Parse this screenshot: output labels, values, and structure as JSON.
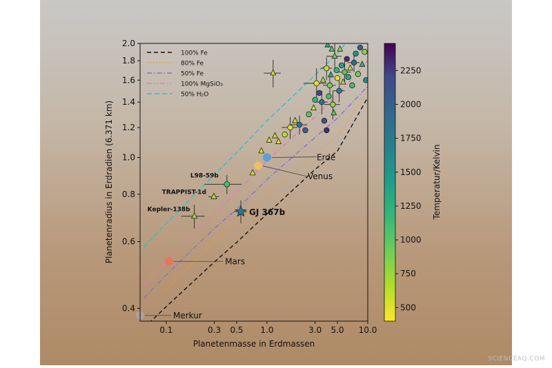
{
  "watermark": "SCIENCEAQ.COM",
  "colors": {
    "bg_top": "#c9c8c6",
    "bg_bottom": "#ae8a66",
    "side_white": "#ffffff"
  },
  "chart_data": {
    "type": "scatter",
    "title": "",
    "xlabel": "Planetenmasse in Erdmassen",
    "ylabel": "Planetenradius in Erdradien (6.371 km)",
    "x_scale": "log",
    "y_scale": "log",
    "xlim": [
      0.055,
      10.0
    ],
    "ylim": [
      0.37,
      2.0
    ],
    "x_ticks": [
      {
        "value": 0.1,
        "label": "0.1"
      },
      {
        "value": 0.3,
        "label": "0.3"
      },
      {
        "value": 0.5,
        "label": "0.5"
      },
      {
        "value": 1.0,
        "label": "1.0"
      },
      {
        "value": 3.0,
        "label": "3.0"
      },
      {
        "value": 5.0,
        "label": "5.0"
      },
      {
        "value": 10.0,
        "label": "10.0"
      }
    ],
    "y_ticks": [
      {
        "value": 0.4,
        "label": "0.4"
      },
      {
        "value": 0.6,
        "label": "0.6"
      },
      {
        "value": 0.8,
        "label": "0.8"
      },
      {
        "value": 1.0,
        "label": "1.0"
      },
      {
        "value": 1.2,
        "label": "1.2"
      },
      {
        "value": 1.4,
        "label": "1.4"
      },
      {
        "value": 1.6,
        "label": "1.6"
      },
      {
        "value": 1.8,
        "label": "1.8"
      },
      {
        "value": 2.0,
        "label": "2.0"
      }
    ],
    "grid": false,
    "legend_position": "top-left",
    "legend": [
      {
        "label": "100% Fe",
        "color": "#111111",
        "dash": "6,4"
      },
      {
        "label": "80% Fe",
        "color": "#f29a2e",
        "dash": "1.5,3"
      },
      {
        "label": "50% Fe",
        "color": "#8b6fd0",
        "dash": "7,3,1.5,3"
      },
      {
        "label": "100% MgSiO₃",
        "color": "#e57ab8",
        "dash": "7,3,1.5,3,1.5,3"
      },
      {
        "label": "50% H₂O",
        "color": "#29c2cc",
        "dash": "7,4"
      }
    ],
    "composition_curves": [
      {
        "name": "100% Fe",
        "color": "#111111",
        "dash": "6,4",
        "points": [
          [
            0.06,
            0.355
          ],
          [
            0.1,
            0.404
          ],
          [
            0.3,
            0.53
          ],
          [
            0.5,
            0.597
          ],
          [
            1.0,
            0.71
          ],
          [
            3.0,
            0.93
          ],
          [
            5.0,
            1.04
          ],
          [
            10.0,
            1.44
          ]
        ]
      },
      {
        "name": "80% Fe",
        "color": "#f29a2e",
        "dash": "1.5,3",
        "points": [
          [
            0.1,
            0.45
          ],
          [
            0.3,
            0.6
          ],
          [
            0.5,
            0.67
          ],
          [
            1.0,
            0.8
          ],
          [
            3.0,
            1.02
          ],
          [
            5.0,
            1.14
          ],
          [
            10.0,
            1.5
          ]
        ]
      },
      {
        "name": "50% Fe",
        "color": "#8b6fd0",
        "dash": "7,3,1.5,3",
        "points": [
          [
            0.06,
            0.425
          ],
          [
            0.1,
            0.49
          ],
          [
            0.3,
            0.65
          ],
          [
            0.5,
            0.73
          ],
          [
            1.0,
            0.875
          ],
          [
            3.0,
            1.13
          ],
          [
            5.0,
            1.27
          ],
          [
            10.0,
            1.54
          ]
        ]
      },
      {
        "name": "100% MgSiO₃",
        "color": "#e57ab8",
        "dash": "7,3,1.5,3,1.5,3",
        "points": [
          [
            0.06,
            0.46
          ],
          [
            0.1,
            0.53
          ],
          [
            0.3,
            0.71
          ],
          [
            0.5,
            0.81
          ],
          [
            1.0,
            0.98
          ],
          [
            3.0,
            1.28
          ],
          [
            5.0,
            1.46
          ],
          [
            10.0,
            1.8
          ]
        ]
      },
      {
        "name": "50% H₂O",
        "color": "#29c2cc",
        "dash": "7,4",
        "points": [
          [
            0.06,
            0.58
          ],
          [
            0.1,
            0.67
          ],
          [
            0.3,
            0.9
          ],
          [
            0.5,
            1.03
          ],
          [
            1.0,
            1.25
          ],
          [
            3.0,
            1.65
          ],
          [
            5.0,
            1.88
          ],
          [
            6.0,
            2.0
          ]
        ]
      }
    ],
    "colorbar": {
      "label": "Temperatur/Kelvin",
      "min": 400,
      "max": 2450,
      "ticks": [
        500,
        750,
        1000,
        1250,
        1500,
        1750,
        2000,
        2250
      ]
    },
    "solar_system": [
      {
        "name": "Erde",
        "mass": 1.0,
        "radius": 1.0,
        "color": "#4b9be0"
      },
      {
        "name": "Venus",
        "mass": 0.815,
        "radius": 0.95,
        "color": "#f2c35a"
      },
      {
        "name": "Mars",
        "mass": 0.107,
        "radius": 0.532,
        "color": "#f06d55"
      },
      {
        "name": "Merkur",
        "mass": 0.055,
        "radius": 0.383,
        "color": "#a8a8a8"
      }
    ],
    "labeled_planets": [
      {
        "name": "GJ 367b",
        "mass": 0.55,
        "radius": 0.72,
        "temp": 1750,
        "marker": "star",
        "xerr": 0.08,
        "yerr": 0.05
      },
      {
        "name": "L98-59b",
        "mass": 0.4,
        "radius": 0.85,
        "temp": 1100,
        "marker": "circle",
        "xerr": 0.16,
        "yerr": 0.05
      },
      {
        "name": "TRAPPIST-1d",
        "mass": 0.297,
        "radius": 0.788,
        "temp": 650,
        "marker": "triangle",
        "xerr": 0.035,
        "yerr": 0.012
      },
      {
        "name": "Kepler-138b",
        "mass": 0.19,
        "radius": 0.7,
        "temp": 700,
        "marker": "triangle",
        "xerr": 0.05,
        "yerr": 0.05
      }
    ],
    "other_planets": [
      {
        "mass": 1.15,
        "radius": 1.67,
        "temp": 550,
        "marker": "triangle",
        "xerr": 0.22,
        "yerr": 0.14
      },
      {
        "mass": 0.72,
        "radius": 0.91,
        "temp": 500,
        "marker": "triangle"
      },
      {
        "mass": 0.88,
        "radius": 1.04,
        "temp": 550,
        "marker": "triangle"
      },
      {
        "mass": 1.05,
        "radius": 1.11,
        "temp": 520,
        "marker": "triangle"
      },
      {
        "mass": 1.2,
        "radius": 1.14,
        "temp": 600,
        "marker": "triangle"
      },
      {
        "mass": 1.3,
        "radius": 1.1,
        "temp": 500,
        "marker": "triangle"
      },
      {
        "mass": 1.5,
        "radius": 1.15,
        "temp": 650,
        "marker": "circle"
      },
      {
        "mass": 1.7,
        "radius": 1.2,
        "temp": 500,
        "marker": "circle",
        "xerr": 0.3,
        "yerr": 0.08
      },
      {
        "mass": 1.9,
        "radius": 1.25,
        "temp": 600,
        "marker": "triangle"
      },
      {
        "mass": 2.1,
        "radius": 1.22,
        "temp": 1800,
        "marker": "circle",
        "xerr": 0.4,
        "yerr": 0.07
      },
      {
        "mass": 2.4,
        "radius": 1.18,
        "temp": 2000,
        "marker": "circle"
      },
      {
        "mass": 2.6,
        "radius": 1.3,
        "temp": 1000,
        "marker": "circle"
      },
      {
        "mass": 2.9,
        "radius": 1.35,
        "temp": 550,
        "marker": "triangle"
      },
      {
        "mass": 3.0,
        "radius": 1.42,
        "temp": 1200,
        "marker": "circle"
      },
      {
        "mass": 3.1,
        "radius": 1.57,
        "temp": 500,
        "marker": "circle",
        "xerr": 0.8,
        "yerr": 0.15
      },
      {
        "mass": 3.3,
        "radius": 1.48,
        "temp": 2200,
        "marker": "circle"
      },
      {
        "mass": 3.5,
        "radius": 1.4,
        "temp": 1800,
        "marker": "circle",
        "xerr": 0.5,
        "yerr": 0.1
      },
      {
        "mass": 3.7,
        "radius": 1.25,
        "temp": 2100,
        "marker": "circle"
      },
      {
        "mass": 3.9,
        "radius": 1.18,
        "temp": 2300,
        "marker": "circle"
      },
      {
        "mass": 3.6,
        "radius": 1.6,
        "temp": 700,
        "marker": "triangle"
      },
      {
        "mass": 3.9,
        "radius": 1.72,
        "temp": 600,
        "marker": "circle",
        "xerr": 0.5,
        "yerr": 0.12
      },
      {
        "mass": 4.1,
        "radius": 1.45,
        "temp": 1100,
        "marker": "circle"
      },
      {
        "mass": 4.2,
        "radius": 1.55,
        "temp": 900,
        "marker": "circle",
        "xerr": 0.6,
        "yerr": 0.1
      },
      {
        "mass": 4.3,
        "radius": 1.65,
        "temp": 1300,
        "marker": "triangle"
      },
      {
        "mass": 4.5,
        "radius": 1.38,
        "temp": 800,
        "marker": "circle",
        "xerr": 0.8,
        "yerr": 0.12
      },
      {
        "mass": 4.6,
        "radius": 1.31,
        "temp": 1000,
        "marker": "triangle"
      },
      {
        "mass": 4.7,
        "radius": 1.85,
        "temp": 900,
        "marker": "triangle",
        "xerr": 0.8,
        "yerr": 0.15
      },
      {
        "mass": 4.9,
        "radius": 1.7,
        "temp": 1200,
        "marker": "circle"
      },
      {
        "mass": 5.0,
        "radius": 1.62,
        "temp": 500,
        "marker": "circle"
      },
      {
        "mass": 5.2,
        "radius": 1.5,
        "temp": 1700,
        "marker": "circle",
        "xerr": 0.7,
        "yerr": 0.1
      },
      {
        "mass": 5.3,
        "radius": 1.93,
        "temp": 800,
        "marker": "triangle"
      },
      {
        "mass": 5.5,
        "radius": 1.75,
        "temp": 1400,
        "marker": "circle"
      },
      {
        "mass": 5.7,
        "radius": 1.58,
        "temp": 700,
        "marker": "triangle"
      },
      {
        "mass": 5.9,
        "radius": 1.68,
        "temp": 1000,
        "marker": "circle",
        "xerr": 0.9,
        "yerr": 0.12
      },
      {
        "mass": 6.2,
        "radius": 1.82,
        "temp": 2300,
        "marker": "circle"
      },
      {
        "mass": 6.4,
        "radius": 1.63,
        "temp": 1300,
        "marker": "circle"
      },
      {
        "mass": 6.7,
        "radius": 1.72,
        "temp": 600,
        "marker": "triangle"
      },
      {
        "mass": 7.0,
        "radius": 1.55,
        "temp": 1100,
        "marker": "circle"
      },
      {
        "mass": 7.3,
        "radius": 1.78,
        "temp": 1900,
        "marker": "circle",
        "xerr": 1.0,
        "yerr": 0.1
      },
      {
        "mass": 7.6,
        "radius": 1.88,
        "temp": 1500,
        "marker": "circle"
      },
      {
        "mass": 8.0,
        "radius": 1.66,
        "temp": 900,
        "marker": "circle"
      },
      {
        "mass": 8.4,
        "radius": 1.95,
        "temp": 2000,
        "marker": "circle"
      },
      {
        "mass": 8.8,
        "radius": 1.76,
        "temp": 1200,
        "marker": "triangle"
      },
      {
        "mass": 9.3,
        "radius": 1.9,
        "temp": 800,
        "marker": "circle"
      },
      {
        "mass": 9.6,
        "radius": 1.6,
        "temp": 1600,
        "marker": "circle"
      },
      {
        "mass": 4.0,
        "radius": 1.98,
        "temp": 1300,
        "marker": "triangle"
      },
      {
        "mass": 4.4,
        "radius": 1.93,
        "temp": 1000,
        "marker": "triangle"
      }
    ]
  }
}
